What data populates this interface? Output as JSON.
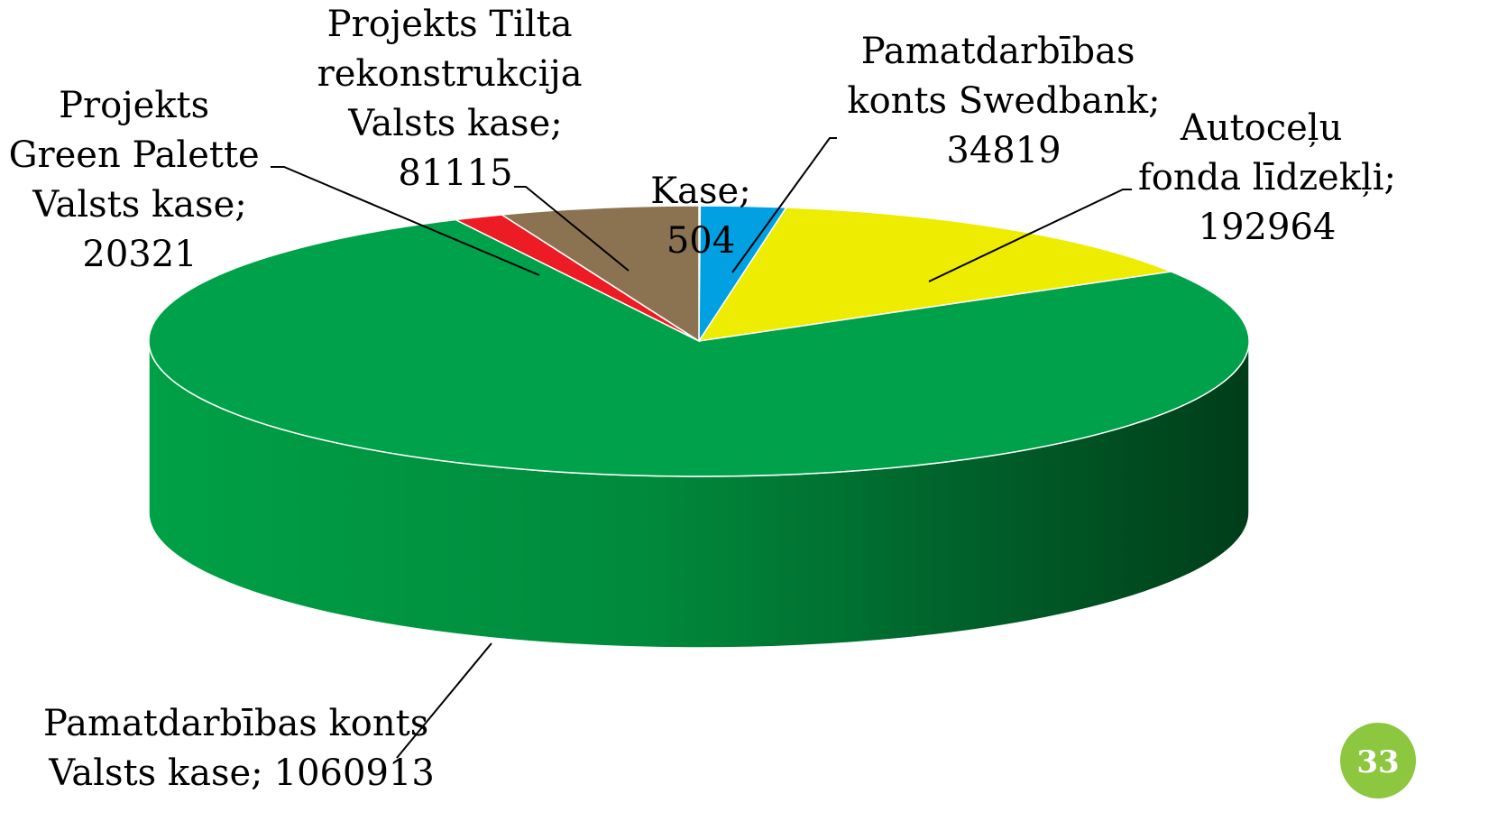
{
  "chart_data": {
    "type": "pie3d",
    "categories": [
      "Kase",
      "Pamatdarbības konts Swedbank",
      "Autoceļu fonda līdzekļi",
      "Pamatdarbības konts Valsts kase",
      "Projekts Green Palette Valsts kase",
      "Projekts Tilta rekonstrukcija Valsts kase"
    ],
    "values": [
      504,
      34819,
      192964,
      1060913,
      20321,
      81115
    ],
    "colors": [
      "#f7941d",
      "#00a0e3",
      "#eeec00",
      "#00a14b",
      "#ed1c24",
      "#8b7352"
    ],
    "separator": ";"
  },
  "page_number": "33"
}
